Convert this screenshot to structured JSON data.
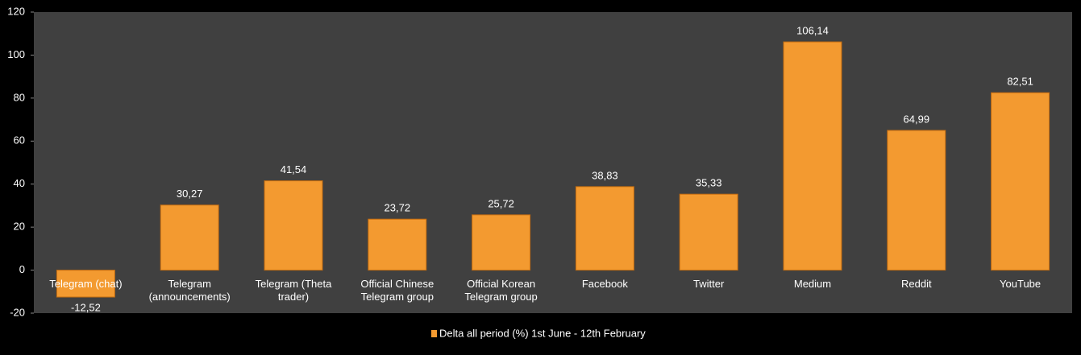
{
  "chart_data": {
    "type": "bar",
    "categories": [
      "Telegram (chat)",
      "Telegram (announcements)",
      "Telegram (Theta trader)",
      "Official Chinese Telegram group",
      "Official Korean Telegram group",
      "Facebook",
      "Twitter",
      "Medium",
      "Reddit",
      "YouTube"
    ],
    "series": [
      {
        "name": "Delta all period (%) 1st June - 12th February",
        "color": "#f39a30",
        "values": [
          -12.52,
          30.27,
          41.54,
          23.72,
          25.72,
          38.83,
          35.33,
          106.14,
          64.99,
          82.51
        ],
        "value_labels": [
          "-12,52",
          "30,27",
          "41,54",
          "23,72",
          "25,72",
          "38,83",
          "35,33",
          "106,14",
          "64,99",
          "82,51"
        ]
      }
    ],
    "ylim": [
      -20,
      120
    ],
    "yticks": [
      -20,
      0,
      20,
      40,
      60,
      80,
      100,
      120
    ],
    "legend": "bottom"
  }
}
